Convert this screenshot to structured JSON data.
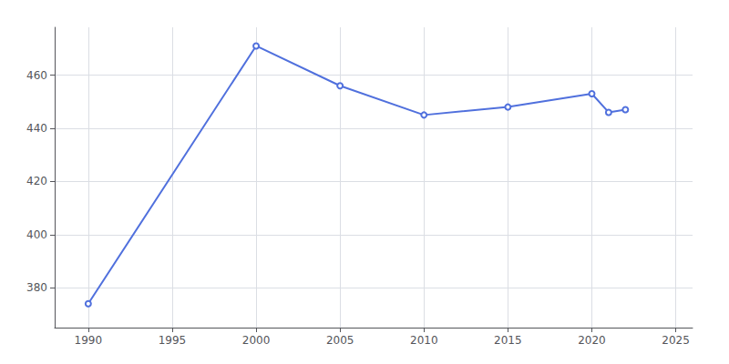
{
  "chart_data": {
    "type": "line",
    "x": [
      1990,
      2000,
      2005,
      2010,
      2015,
      2020,
      2021,
      2022
    ],
    "values": [
      374,
      471,
      456,
      445,
      448,
      453,
      446,
      447
    ],
    "xlim": [
      1988,
      2026
    ],
    "ylim": [
      365,
      478
    ],
    "xticks": [
      1990,
      1995,
      2000,
      2005,
      2010,
      2015,
      2020,
      2025
    ],
    "yticks": [
      380,
      400,
      420,
      440,
      460
    ],
    "grid": true
  }
}
